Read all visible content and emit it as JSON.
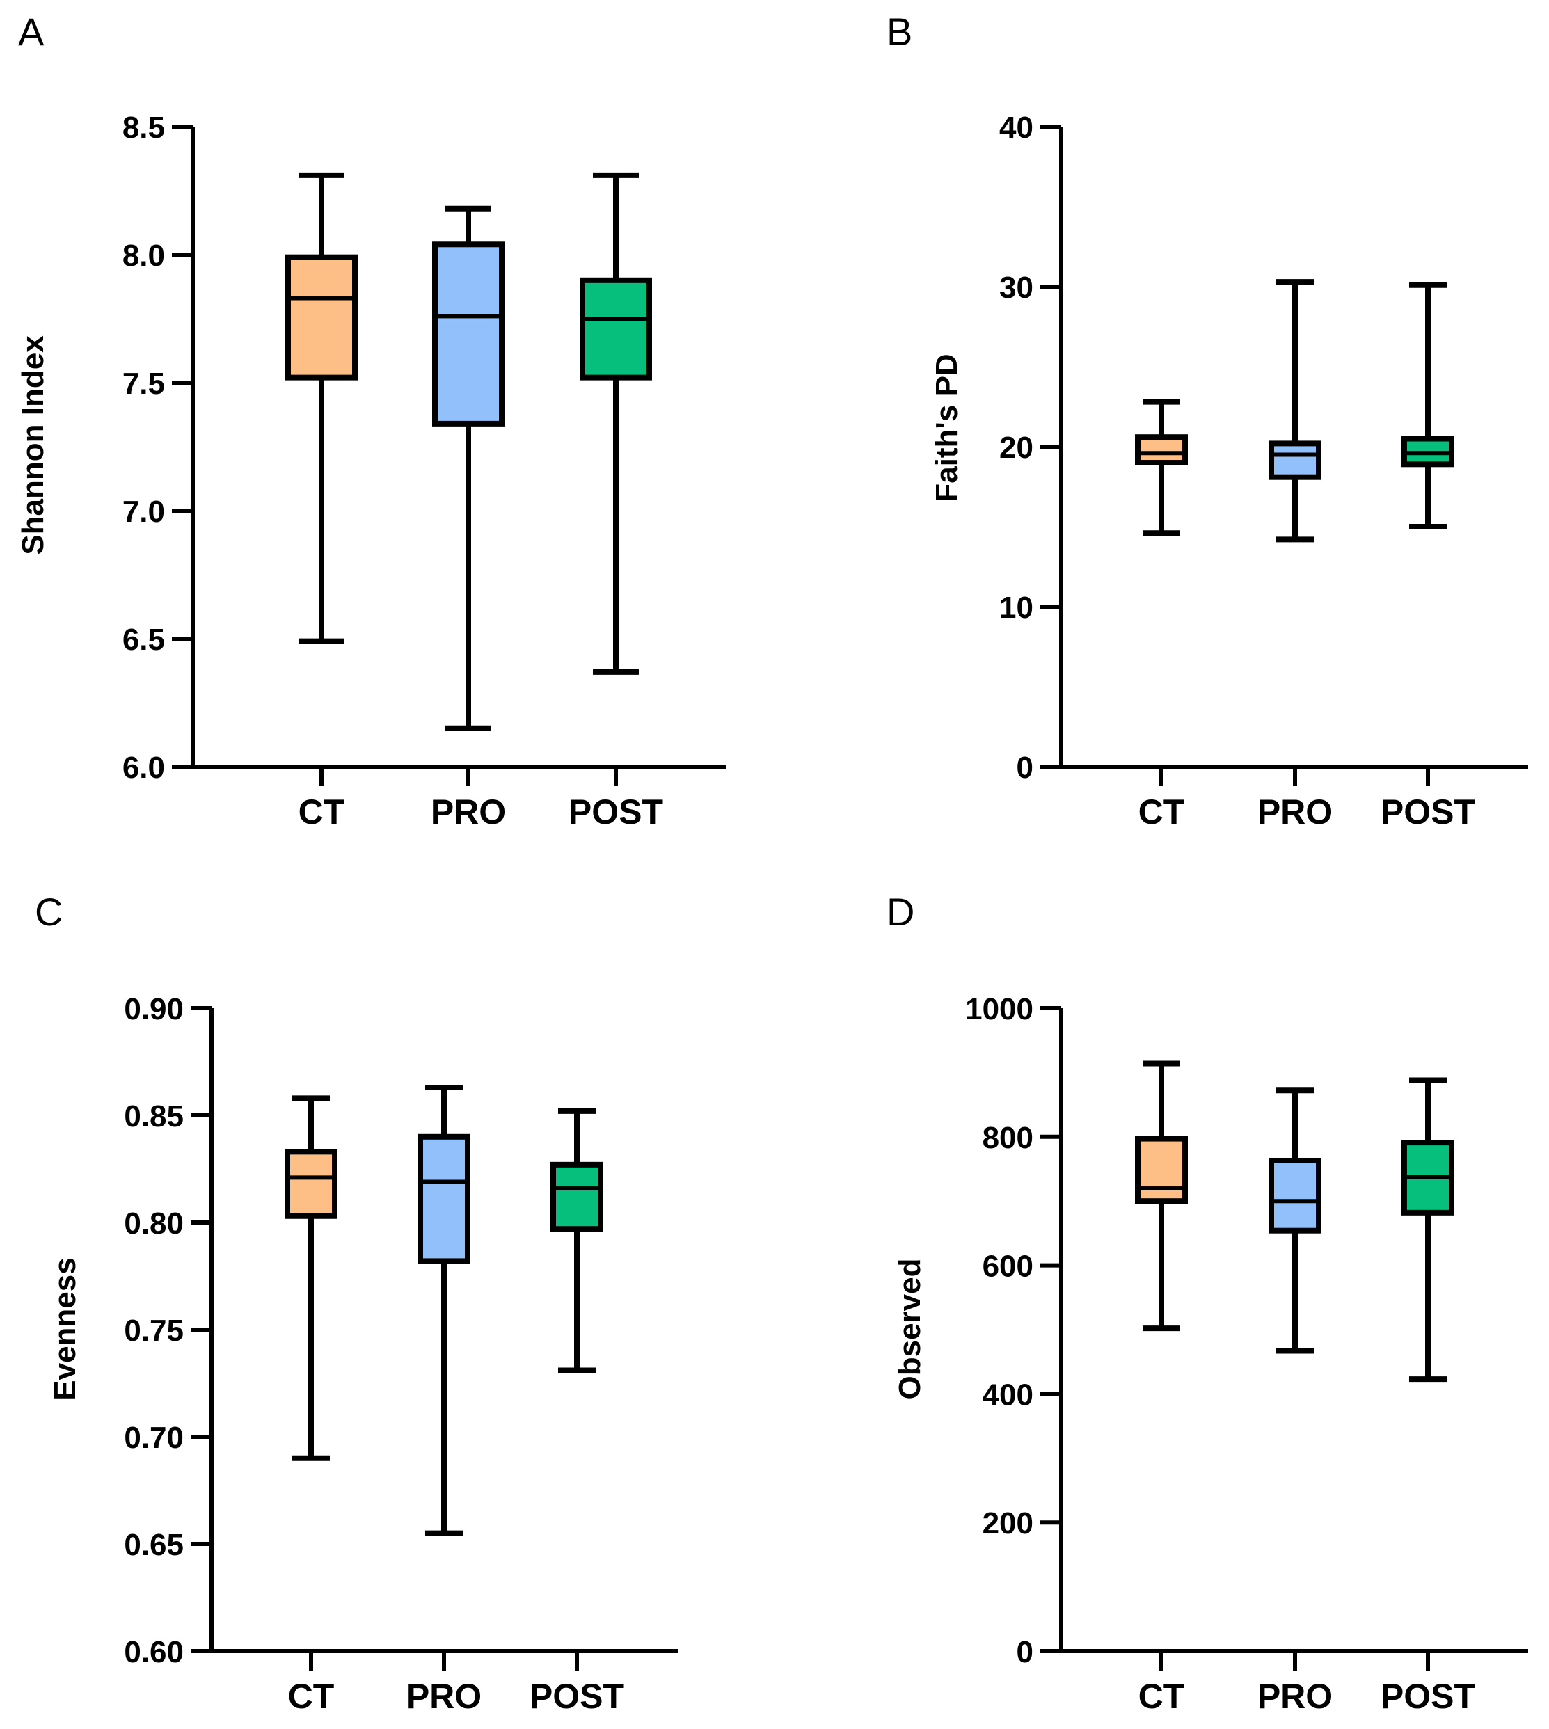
{
  "panels": [
    {
      "letter": "A"
    },
    {
      "letter": "B"
    },
    {
      "letter": "C"
    },
    {
      "letter": "D"
    }
  ],
  "colors": {
    "CT": "#FDBF85",
    "PRO": "#92C0FA",
    "POST": "#06BF7C",
    "stroke": "#000000"
  },
  "chart_data": [
    {
      "type": "box",
      "panel": "A",
      "ylabel": "Shannon Index",
      "categories": [
        "CT",
        "PRO",
        "POST"
      ],
      "ylim": [
        6.0,
        8.5
      ],
      "yticks": [
        6.0,
        6.5,
        7.0,
        7.5,
        8.0,
        8.5
      ],
      "ytick_labels": [
        "6.0",
        "6.5",
        "7.0",
        "7.5",
        "8.0",
        "8.5"
      ],
      "boxes": [
        {
          "group": "CT",
          "min": 6.49,
          "q1": 7.52,
          "median": 7.83,
          "q3": 7.99,
          "max": 8.31
        },
        {
          "group": "PRO",
          "min": 6.15,
          "q1": 7.34,
          "median": 7.76,
          "q3": 8.04,
          "max": 8.18
        },
        {
          "group": "POST",
          "min": 6.37,
          "q1": 7.52,
          "median": 7.75,
          "q3": 7.9,
          "max": 8.31
        }
      ]
    },
    {
      "type": "box",
      "panel": "B",
      "ylabel": "Faith's PD",
      "categories": [
        "CT",
        "PRO",
        "POST"
      ],
      "ylim": [
        0,
        40
      ],
      "yticks": [
        0,
        10,
        20,
        30,
        40
      ],
      "ytick_labels": [
        "0",
        "10",
        "20",
        "30",
        "40"
      ],
      "boxes": [
        {
          "group": "CT",
          "min": 14.6,
          "q1": 19.0,
          "median": 19.6,
          "q3": 20.6,
          "max": 22.8
        },
        {
          "group": "PRO",
          "min": 14.2,
          "q1": 18.1,
          "median": 19.5,
          "q3": 20.2,
          "max": 30.3
        },
        {
          "group": "POST",
          "min": 15.0,
          "q1": 18.9,
          "median": 19.6,
          "q3": 20.5,
          "max": 30.1
        }
      ]
    },
    {
      "type": "box",
      "panel": "C",
      "ylabel": "Evenness",
      "categories": [
        "CT",
        "PRO",
        "POST"
      ],
      "ylim": [
        0.6,
        0.9
      ],
      "yticks": [
        0.6,
        0.65,
        0.7,
        0.75,
        0.8,
        0.85,
        0.9
      ],
      "ytick_labels": [
        "0.60",
        "0.65",
        "0.70",
        "0.75",
        "0.80",
        "0.85",
        "0.90"
      ],
      "boxes": [
        {
          "group": "CT",
          "min": 0.69,
          "q1": 0.803,
          "median": 0.821,
          "q3": 0.833,
          "max": 0.858
        },
        {
          "group": "PRO",
          "min": 0.655,
          "q1": 0.782,
          "median": 0.819,
          "q3": 0.84,
          "max": 0.863
        },
        {
          "group": "POST",
          "min": 0.731,
          "q1": 0.797,
          "median": 0.816,
          "q3": 0.827,
          "max": 0.852
        }
      ]
    },
    {
      "type": "box",
      "panel": "D",
      "ylabel": "Observed",
      "categories": [
        "CT",
        "PRO",
        "POST"
      ],
      "ylim": [
        0,
        1000
      ],
      "yticks": [
        0,
        200,
        400,
        600,
        800,
        1000
      ],
      "ytick_labels": [
        "0",
        "200",
        "400",
        "600",
        "800",
        "1000"
      ],
      "boxes": [
        {
          "group": "CT",
          "min": 502,
          "q1": 700,
          "median": 720,
          "q3": 797,
          "max": 914
        },
        {
          "group": "PRO",
          "min": 467,
          "q1": 654,
          "median": 700,
          "q3": 763,
          "max": 872
        },
        {
          "group": "POST",
          "min": 423,
          "q1": 682,
          "median": 737,
          "q3": 791,
          "max": 888
        }
      ]
    }
  ]
}
